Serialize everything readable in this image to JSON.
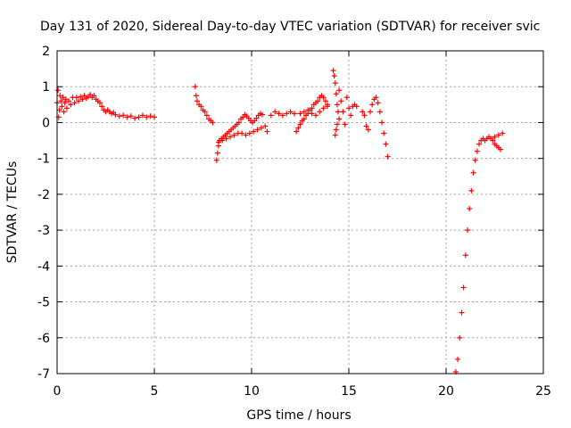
{
  "colors": {
    "series": "#ff0000",
    "grid": "#a0a0a0",
    "axis": "#000000",
    "background": "#ffffff"
  },
  "chart_data": {
    "type": "scatter",
    "title": "Day 131 of 2020, Sidereal Day-to-day VTEC variation (SDTVAR) for receiver svic",
    "xlabel": "GPS time / hours",
    "ylabel": "SDTVAR / TECUs",
    "xlim": [
      0,
      25
    ],
    "ylim": [
      -7,
      2
    ],
    "xticks": [
      0,
      5,
      10,
      15,
      20,
      25
    ],
    "yticks": [
      -7,
      -6,
      -5,
      -4,
      -3,
      -2,
      -1,
      0,
      1,
      2
    ],
    "grid": true,
    "marker": "plus",
    "series": [
      {
        "name": "SDTVAR",
        "color": "#ff0000",
        "points": [
          [
            0.0,
            0.55
          ],
          [
            0.05,
            0.9
          ],
          [
            0.08,
            0.15
          ],
          [
            0.12,
            0.35
          ],
          [
            0.15,
            0.75
          ],
          [
            0.2,
            0.6
          ],
          [
            0.25,
            0.45
          ],
          [
            0.3,
            0.7
          ],
          [
            0.35,
            0.3
          ],
          [
            0.4,
            0.55
          ],
          [
            0.45,
            0.65
          ],
          [
            0.5,
            0.4
          ],
          [
            0.6,
            0.6
          ],
          [
            0.7,
            0.5
          ],
          [
            0.8,
            0.7
          ],
          [
            0.9,
            0.55
          ],
          [
            1.0,
            0.7
          ],
          [
            1.1,
            0.6
          ],
          [
            1.2,
            0.72
          ],
          [
            1.3,
            0.65
          ],
          [
            1.4,
            0.75
          ],
          [
            1.5,
            0.68
          ],
          [
            1.6,
            0.72
          ],
          [
            1.7,
            0.78
          ],
          [
            1.8,
            0.7
          ],
          [
            1.9,
            0.75
          ],
          [
            2.0,
            0.65
          ],
          [
            2.1,
            0.6
          ],
          [
            2.2,
            0.55
          ],
          [
            2.3,
            0.45
          ],
          [
            2.4,
            0.35
          ],
          [
            2.5,
            0.3
          ],
          [
            2.6,
            0.35
          ],
          [
            2.7,
            0.3
          ],
          [
            2.8,
            0.25
          ],
          [
            2.9,
            0.28
          ],
          [
            3.0,
            0.22
          ],
          [
            3.2,
            0.18
          ],
          [
            3.4,
            0.2
          ],
          [
            3.6,
            0.15
          ],
          [
            3.8,
            0.18
          ],
          [
            4.0,
            0.12
          ],
          [
            4.2,
            0.15
          ],
          [
            4.4,
            0.2
          ],
          [
            4.6,
            0.15
          ],
          [
            4.8,
            0.18
          ],
          [
            5.0,
            0.15
          ],
          [
            7.1,
            1.0
          ],
          [
            7.15,
            0.75
          ],
          [
            7.2,
            0.6
          ],
          [
            7.3,
            0.5
          ],
          [
            7.4,
            0.45
          ],
          [
            7.5,
            0.35
          ],
          [
            7.6,
            0.3
          ],
          [
            7.7,
            0.2
          ],
          [
            7.8,
            0.1
          ],
          [
            7.9,
            0.05
          ],
          [
            8.0,
            0.0
          ],
          [
            8.2,
            -1.05
          ],
          [
            8.25,
            -0.85
          ],
          [
            8.3,
            -0.65
          ],
          [
            8.35,
            -0.5
          ],
          [
            8.45,
            -0.45
          ],
          [
            8.55,
            -0.4
          ],
          [
            8.65,
            -0.35
          ],
          [
            8.75,
            -0.3
          ],
          [
            8.85,
            -0.25
          ],
          [
            8.95,
            -0.2
          ],
          [
            9.05,
            -0.15
          ],
          [
            9.15,
            -0.1
          ],
          [
            9.25,
            -0.05
          ],
          [
            9.35,
            0.0
          ],
          [
            9.45,
            0.1
          ],
          [
            9.55,
            0.15
          ],
          [
            9.65,
            0.22
          ],
          [
            9.75,
            0.18
          ],
          [
            9.85,
            0.12
          ],
          [
            9.95,
            0.05
          ],
          [
            10.05,
            0.0
          ],
          [
            10.15,
            0.05
          ],
          [
            10.25,
            0.12
          ],
          [
            10.35,
            0.2
          ],
          [
            10.45,
            0.25
          ],
          [
            10.55,
            0.22
          ],
          [
            8.3,
            -0.55
          ],
          [
            8.5,
            -0.5
          ],
          [
            8.7,
            -0.45
          ],
          [
            8.9,
            -0.4
          ],
          [
            9.1,
            -0.35
          ],
          [
            9.3,
            -0.3
          ],
          [
            9.5,
            -0.3
          ],
          [
            9.7,
            -0.35
          ],
          [
            9.9,
            -0.3
          ],
          [
            10.1,
            -0.25
          ],
          [
            10.3,
            -0.2
          ],
          [
            10.5,
            -0.15
          ],
          [
            10.7,
            -0.1
          ],
          [
            10.8,
            -0.25
          ],
          [
            11.0,
            0.2
          ],
          [
            11.2,
            0.3
          ],
          [
            11.4,
            0.25
          ],
          [
            11.6,
            0.2
          ],
          [
            11.8,
            0.25
          ],
          [
            12.0,
            0.3
          ],
          [
            12.2,
            0.25
          ],
          [
            12.3,
            -0.25
          ],
          [
            12.4,
            -0.15
          ],
          [
            12.5,
            -0.05
          ],
          [
            12.6,
            0.05
          ],
          [
            12.7,
            0.1
          ],
          [
            12.8,
            0.2
          ],
          [
            12.9,
            0.25
          ],
          [
            13.0,
            0.35
          ],
          [
            13.1,
            0.4
          ],
          [
            13.2,
            0.5
          ],
          [
            13.3,
            0.55
          ],
          [
            13.4,
            0.6
          ],
          [
            13.5,
            0.7
          ],
          [
            13.6,
            0.75
          ],
          [
            13.7,
            0.7
          ],
          [
            13.8,
            0.6
          ],
          [
            13.9,
            0.5
          ],
          [
            12.5,
            0.25
          ],
          [
            12.7,
            0.3
          ],
          [
            12.9,
            0.35
          ],
          [
            13.1,
            0.25
          ],
          [
            13.3,
            0.2
          ],
          [
            13.5,
            0.3
          ],
          [
            13.7,
            0.4
          ],
          [
            13.9,
            0.45
          ],
          [
            14.2,
            1.45
          ],
          [
            14.25,
            1.3
          ],
          [
            14.3,
            1.1
          ],
          [
            14.35,
            0.8
          ],
          [
            14.4,
            0.5
          ],
          [
            14.45,
            0.3
          ],
          [
            14.5,
            0.1
          ],
          [
            14.3,
            -0.35
          ],
          [
            14.35,
            -0.2
          ],
          [
            14.4,
            -0.05
          ],
          [
            14.5,
            0.9
          ],
          [
            14.6,
            0.6
          ],
          [
            14.7,
            0.3
          ],
          [
            14.8,
            -0.05
          ],
          [
            14.9,
            0.7
          ],
          [
            15.0,
            0.4
          ],
          [
            15.1,
            0.2
          ],
          [
            15.2,
            0.45
          ],
          [
            15.3,
            0.5
          ],
          [
            15.4,
            0.45
          ],
          [
            15.7,
            0.3
          ],
          [
            15.8,
            0.2
          ],
          [
            15.9,
            -0.1
          ],
          [
            16.0,
            -0.2
          ],
          [
            16.1,
            0.3
          ],
          [
            16.2,
            0.5
          ],
          [
            16.3,
            0.65
          ],
          [
            16.4,
            0.7
          ],
          [
            16.5,
            0.55
          ],
          [
            16.6,
            0.3
          ],
          [
            16.7,
            0.0
          ],
          [
            16.8,
            -0.3
          ],
          [
            16.9,
            -0.6
          ],
          [
            17.0,
            -0.95
          ],
          [
            20.5,
            -6.95
          ],
          [
            20.6,
            -6.6
          ],
          [
            20.7,
            -6.0
          ],
          [
            20.8,
            -5.3
          ],
          [
            20.9,
            -4.6
          ],
          [
            21.0,
            -3.7
          ],
          [
            21.1,
            -3.0
          ],
          [
            21.2,
            -2.4
          ],
          [
            21.3,
            -1.9
          ],
          [
            21.4,
            -1.4
          ],
          [
            21.5,
            -1.05
          ],
          [
            21.6,
            -0.8
          ],
          [
            21.7,
            -0.6
          ],
          [
            21.8,
            -0.5
          ],
          [
            21.9,
            -0.45
          ],
          [
            22.0,
            -0.5
          ],
          [
            22.1,
            -0.45
          ],
          [
            22.2,
            -0.4
          ],
          [
            22.3,
            -0.45
          ],
          [
            22.4,
            -0.5
          ],
          [
            22.5,
            -0.6
          ],
          [
            22.6,
            -0.65
          ],
          [
            22.7,
            -0.7
          ],
          [
            22.8,
            -0.75
          ],
          [
            22.5,
            -0.4
          ],
          [
            22.7,
            -0.35
          ],
          [
            22.9,
            -0.3
          ]
        ]
      }
    ]
  }
}
